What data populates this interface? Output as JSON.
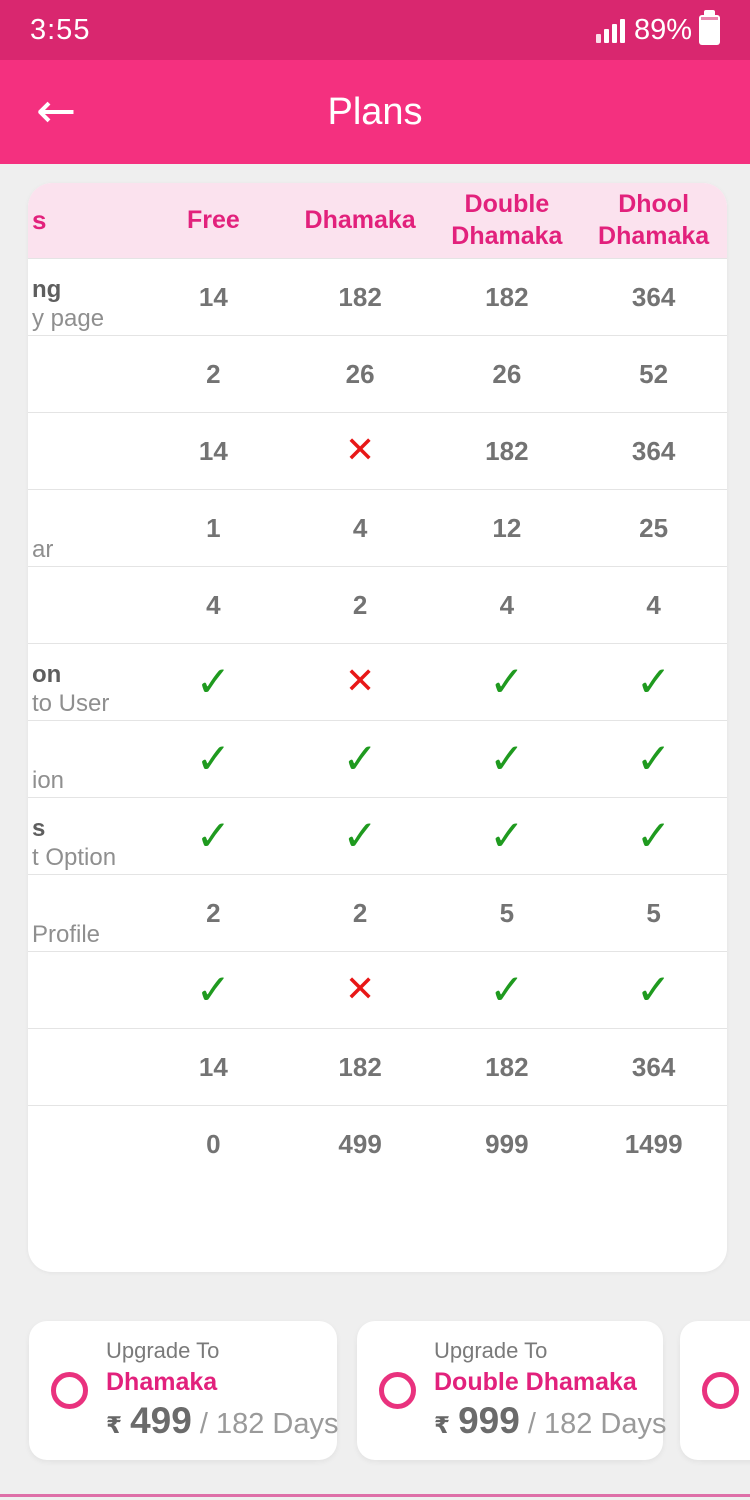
{
  "colors": {
    "status_bar_bg": "#D9276F",
    "app_bar_bg": "#F4307F",
    "header_bg": "#FBE2EE",
    "accent_pink": "#E2217C",
    "check_green": "#1F9A1F",
    "cross_red": "#E81717",
    "bottom_line_pink": "#DE6FA8",
    "page_bg": "#EFEFEF"
  },
  "icons": {
    "back": "←",
    "check": "✓",
    "cross": "✕"
  },
  "status_bar": {
    "time": "3:55",
    "battery_percent": "89%"
  },
  "app_bar": {
    "title": "Plans"
  },
  "table": {
    "columns": [
      "s",
      "Free",
      "Dhamaka",
      "Double Dhamaka",
      "Dhool Dhamaka"
    ],
    "rows": [
      {
        "label1": "ng",
        "label2": "y page",
        "values": [
          "14",
          "182",
          "182",
          "364"
        ]
      },
      {
        "label1": "",
        "label2": "",
        "values": [
          "2",
          "26",
          "26",
          "52"
        ]
      },
      {
        "label1": "",
        "label2": "",
        "values": [
          "14",
          "cross",
          "182",
          "364"
        ]
      },
      {
        "label1": "",
        "label2": "ar",
        "values": [
          "1",
          "4",
          "12",
          "25"
        ]
      },
      {
        "label1": "",
        "label2": "",
        "values": [
          "4",
          "2",
          "4",
          "4"
        ]
      },
      {
        "label1": "on",
        "label2": "to User",
        "values": [
          "check",
          "cross",
          "check",
          "check"
        ]
      },
      {
        "label1": "",
        "label2": "ion",
        "values": [
          "check",
          "check",
          "check",
          "check"
        ]
      },
      {
        "label1": "s",
        "label2": "t Option",
        "values": [
          "check",
          "check",
          "check",
          "check"
        ]
      },
      {
        "label1": "",
        "label2": "Profile",
        "values": [
          "2",
          "2",
          "5",
          "5"
        ]
      },
      {
        "label1": "",
        "label2": "",
        "values": [
          "check",
          "cross",
          "check",
          "check"
        ]
      },
      {
        "label1": "",
        "label2": "",
        "values": [
          "14",
          "182",
          "182",
          "364"
        ]
      },
      {
        "label1": "",
        "label2": "",
        "values": [
          "0",
          "499",
          "999",
          "1499"
        ]
      }
    ]
  },
  "upgrade_cards": [
    {
      "upgrade_label": "Upgrade To",
      "plan": "Dhamaka",
      "currency": "₹",
      "amount": "499",
      "period": "/ 182 Days"
    },
    {
      "upgrade_label": "Upgrade To",
      "plan": "Double Dhamaka",
      "currency": "₹",
      "amount": "999",
      "period": "/ 182 Days"
    },
    {
      "upgrade_label": "",
      "plan": "",
      "currency": "",
      "amount": "",
      "period": ""
    }
  ]
}
